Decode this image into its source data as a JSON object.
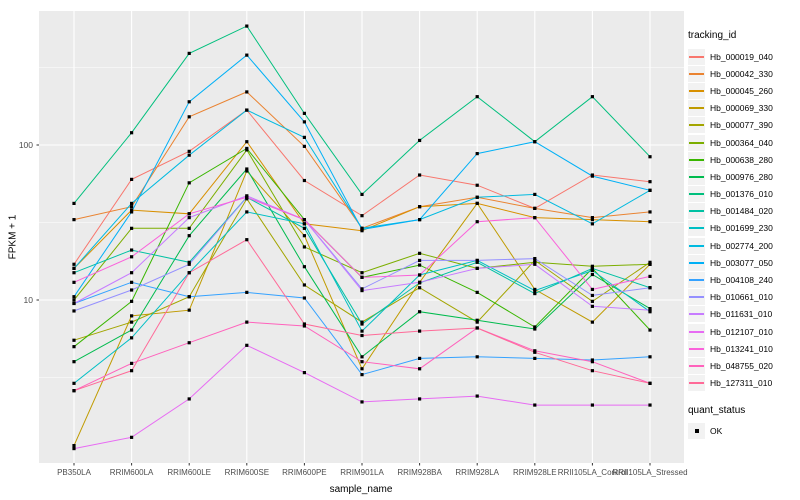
{
  "style": {
    "panel_bg": "#EBEBEB",
    "grid_color": "#FFFFFF",
    "point_color": "#000000",
    "tick_text_color": "#4D4D4D",
    "tick_mark_color": "#333333",
    "legend_key_bg": "#F2F2F2"
  },
  "chart_data": {
    "type": "line",
    "title": "",
    "xlabel": "sample_name",
    "ylabel": "FPKM + 1",
    "y_scale": "log10",
    "grid": true,
    "y_ticks": [
      {
        "value": 100,
        "label": "100"
      },
      {
        "value": 10,
        "label": "10"
      }
    ],
    "y_minor_breaks": [
      3.162,
      31.62,
      316.2
    ],
    "ylim": [
      0.9,
      730
    ],
    "legend": {
      "title": "tracking_id",
      "position": "right"
    },
    "legend2": {
      "title": "quant_status",
      "items": [
        {
          "label": "OK",
          "marker": "black-square"
        }
      ]
    },
    "categories": [
      "PB350LA",
      "RRIM600LA",
      "RRIM600LE",
      "RRIM600SE",
      "RRIM600PE",
      "RRIM901LA",
      "RRIM928BA",
      "RRIM928LA",
      "RRIM928LE",
      "RRII105LA_Control",
      "RRII105LA_Stressed"
    ],
    "series": [
      {
        "name": "Hb_000019_040",
        "color": "#F8766D",
        "values": [
          17,
          60,
          91,
          168,
          59,
          35,
          64,
          55,
          39,
          64,
          58
        ]
      },
      {
        "name": "Hb_000042_330",
        "color": "#EA8331",
        "values": [
          33,
          40,
          152,
          220,
          98,
          29,
          40,
          46,
          39,
          34,
          37
        ]
      },
      {
        "name": "Hb_000045_260",
        "color": "#D89000",
        "values": [
          16,
          38,
          36,
          105,
          31,
          28,
          40,
          42,
          34,
          33,
          32
        ]
      },
      {
        "name": "Hb_000069_330",
        "color": "#C09B00",
        "values": [
          1.15,
          7.9,
          8.6,
          68,
          26,
          3.6,
          13,
          42,
          11.7,
          7.2,
          17
        ]
      },
      {
        "name": "Hb_000077_390",
        "color": "#A3A500",
        "values": [
          5.5,
          7.2,
          10.5,
          45,
          12.5,
          7.2,
          12,
          7.2,
          18,
          9.8,
          17.5
        ]
      },
      {
        "name": "Hb_000364_040",
        "color": "#7CAE00",
        "values": [
          10,
          29,
          29,
          93,
          22,
          15,
          20,
          16,
          17.5,
          16.5,
          17
        ]
      },
      {
        "name": "Hb_000638_280",
        "color": "#39B600",
        "values": [
          5,
          9.8,
          57,
          95,
          33,
          14,
          16.8,
          11.2,
          6.7,
          16,
          6.4
        ]
      },
      {
        "name": "Hb_000976_280",
        "color": "#00BB4E",
        "values": [
          4,
          6.4,
          26,
          70,
          16.4,
          4.3,
          8.4,
          7.4,
          6.5,
          14.6,
          8.8
        ]
      },
      {
        "name": "Hb_001376_010",
        "color": "#00BF7D",
        "values": [
          42,
          120,
          390,
          585,
          160,
          48,
          107,
          205,
          105,
          205,
          84
        ]
      },
      {
        "name": "Hb_001484_020",
        "color": "#00C1A3",
        "values": [
          15,
          21,
          17.5,
          46,
          29,
          7,
          12.9,
          17.5,
          11,
          16,
          12
        ]
      },
      {
        "name": "Hb_001699_230",
        "color": "#00BFC4",
        "values": [
          2.9,
          5.7,
          15,
          37,
          31,
          6.3,
          14.5,
          18,
          11.5,
          15.5,
          8.4
        ]
      },
      {
        "name": "Hb_002774_200",
        "color": "#00BAE0",
        "values": [
          16,
          42,
          86,
          168,
          112,
          29,
          33,
          46,
          48,
          31,
          51
        ]
      },
      {
        "name": "Hb_003077_050",
        "color": "#00B0F6",
        "values": [
          10.5,
          37,
          190,
          380,
          141,
          28.5,
          33,
          88,
          105,
          63,
          51
        ]
      },
      {
        "name": "Hb_004108_240",
        "color": "#35A2FF",
        "values": [
          9.5,
          13,
          10.5,
          11.2,
          10.3,
          3.3,
          4.2,
          4.3,
          4.2,
          4.1,
          4.3
        ]
      },
      {
        "name": "Hb_010661_010",
        "color": "#9590FF",
        "values": [
          8.5,
          11.6,
          17,
          46,
          33,
          11.8,
          18,
          18,
          18.5,
          10.7,
          12
        ]
      },
      {
        "name": "Hb_011631_010",
        "color": "#C77CFF",
        "values": [
          9.5,
          15,
          34,
          47,
          33,
          11.5,
          13,
          16,
          17,
          9.1,
          8.6
        ]
      },
      {
        "name": "Hb_012107_010",
        "color": "#E76BF3",
        "values": [
          1.1,
          1.3,
          2.3,
          5.1,
          3.4,
          2.2,
          2.3,
          2.4,
          2.1,
          2.1,
          2.1
        ]
      },
      {
        "name": "Hb_013241_010",
        "color": "#FA62DB",
        "values": [
          13,
          19,
          36,
          46,
          33,
          14,
          14.5,
          32,
          34,
          11.7,
          14.2
        ]
      },
      {
        "name": "Hb_048755_020",
        "color": "#FF62BC",
        "values": [
          2.6,
          3.9,
          5.3,
          7.2,
          6.8,
          4.0,
          3.6,
          6.6,
          4.7,
          4.0,
          2.9
        ]
      },
      {
        "name": "Hb_127311_010",
        "color": "#FF6A98",
        "values": [
          2.6,
          3.5,
          15,
          24.5,
          7,
          5.9,
          6.3,
          6.6,
          4.6,
          3.5,
          2.9
        ]
      }
    ]
  }
}
